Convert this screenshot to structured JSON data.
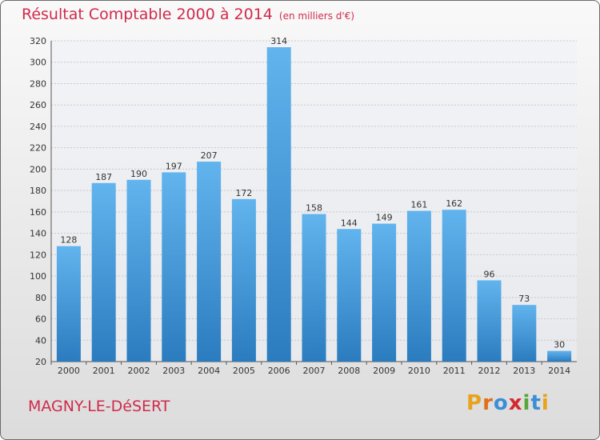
{
  "chart_data": {
    "type": "bar",
    "title": "Résultat Comptable 2000 à 2014",
    "subtitle": "(en milliers d'€)",
    "categories": [
      "2000",
      "2001",
      "2002",
      "2003",
      "2004",
      "2005",
      "2006",
      "2007",
      "2008",
      "2009",
      "2010",
      "2011",
      "2012",
      "2013",
      "2014"
    ],
    "values": [
      128,
      187,
      190,
      197,
      207,
      172,
      314,
      158,
      144,
      149,
      161,
      162,
      96,
      73,
      30
    ],
    "ylim": [
      20,
      320
    ],
    "yticks": [
      20,
      40,
      60,
      80,
      100,
      120,
      140,
      160,
      180,
      200,
      220,
      240,
      260,
      280,
      300,
      320
    ],
    "grid": true,
    "xlabel": "",
    "ylabel": ""
  },
  "footer": {
    "town": "MAGNY-LE-DéSERT",
    "logo_text": "Proxiti"
  },
  "colors": {
    "title": "#d12a4b",
    "bar_top": "#62b4ee",
    "bar_bottom": "#2a7cbf",
    "logo": [
      "#e8a21c",
      "#e06e1a",
      "#3a8fd6",
      "#d4282e",
      "#57a639",
      "#3a8fd6",
      "#e8a21c"
    ]
  }
}
